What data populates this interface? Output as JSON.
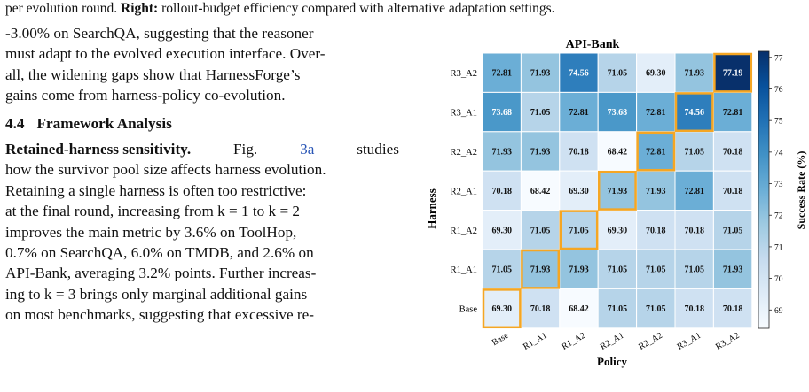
{
  "caption": {
    "line1_partial": "per evolution round.",
    "right_label": "Right:",
    "line1_rest": "rollout-budget efficiency compared with alternative adaptation settings."
  },
  "text": {
    "para1": [
      "-3.00% on SearchQA, suggesting that the reasoner",
      "must adapt to the evolved execution interface. Over-",
      "all, the widening gaps show that HarnessForge’s",
      "gains come from harness-policy co-evolution."
    ],
    "section_number": "4.4",
    "section_title": "Framework Analysis",
    "para2_lead": "Retained-harness sensitivity.",
    "para2_fig": "Fig.",
    "para2_ref": "3a",
    "para2_after_ref": "studies",
    "para2": [
      "how the survivor pool size affects harness evolution.",
      "Retaining a single harness is often too restrictive:",
      "at the final round, increasing from k = 1 to k = 2",
      "improves the main metric by 3.6% on ToolHop,",
      "0.7% on SearchQA, 6.0% on TMDB, and 2.6% on",
      "API-Bank, averaging 3.2% points. Further increas-",
      "ing to k = 3 brings only marginal additional gains",
      "on most benchmarks, suggesting that excessive re-"
    ]
  },
  "chart_data": {
    "type": "heatmap",
    "title": "API-Bank",
    "xlabel": "Policy",
    "ylabel": "Harness",
    "colorbar_label": "Success Rate (%)",
    "colorbar_ticks": [
      69,
      70,
      71,
      72,
      73,
      74,
      75,
      76,
      77
    ],
    "vmin": 68.42,
    "vmax": 77.19,
    "x_categories": [
      "Base",
      "R1_A1",
      "R1_A2",
      "R2_A1",
      "R2_A2",
      "R3_A1",
      "R3_A2"
    ],
    "y_categories": [
      "R3_A2",
      "R3_A1",
      "R2_A2",
      "R2_A1",
      "R1_A2",
      "R1_A1",
      "Base"
    ],
    "values": [
      [
        72.81,
        71.93,
        74.56,
        71.05,
        69.3,
        71.93,
        77.19
      ],
      [
        73.68,
        71.05,
        72.81,
        73.68,
        72.81,
        74.56,
        72.81
      ],
      [
        71.93,
        71.93,
        70.18,
        68.42,
        72.81,
        71.05,
        70.18
      ],
      [
        70.18,
        68.42,
        69.3,
        71.93,
        71.93,
        72.81,
        70.18
      ],
      [
        69.3,
        71.05,
        71.05,
        69.3,
        70.18,
        70.18,
        71.05
      ],
      [
        71.05,
        71.93,
        71.93,
        71.05,
        71.05,
        71.05,
        71.93
      ],
      [
        69.3,
        70.18,
        68.42,
        71.05,
        71.05,
        70.18,
        70.18
      ]
    ],
    "highlighted_path": [
      [
        6,
        0
      ],
      [
        5,
        1
      ],
      [
        4,
        2
      ],
      [
        3,
        3
      ],
      [
        2,
        4
      ],
      [
        1,
        5
      ],
      [
        0,
        6
      ]
    ],
    "colors": {
      "low": "#f7fbff",
      "high": "#08306b",
      "highlight": "#f5a623"
    }
  }
}
